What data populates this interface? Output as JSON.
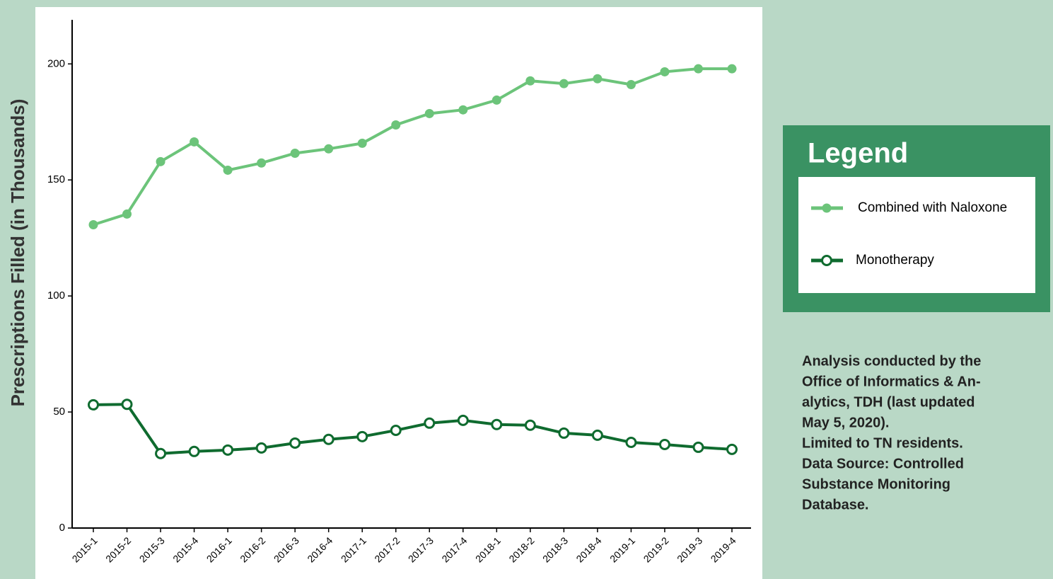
{
  "chart_data": {
    "type": "line",
    "y_label": "Prescriptions Filled (in Thousands)",
    "categories": [
      "2015-1",
      "2015-2",
      "2015-3",
      "2015-4",
      "2016-1",
      "2016-2",
      "2016-3",
      "2016-4",
      "2017-1",
      "2017-2",
      "2017-3",
      "2017-4",
      "2018-1",
      "2018-2",
      "2018-3",
      "2018-4",
      "2019-1",
      "2019-2",
      "2019-3",
      "2019-4"
    ],
    "series": [
      {
        "name": "Combined with Naloxone",
        "color": "#6cc47a",
        "marker": "filled",
        "values": [
          130.7,
          135.3,
          157.9,
          166.4,
          154.2,
          157.3,
          161.5,
          163.4,
          165.8,
          173.7,
          178.6,
          180.2,
          184.4,
          192.7,
          191.5,
          193.6,
          191.1,
          196.6,
          197.9,
          197.9
        ]
      },
      {
        "name": "Monotherapy",
        "color": "#0f6b2f",
        "marker": "open",
        "values": [
          53.1,
          53.3,
          32.1,
          33.0,
          33.6,
          34.5,
          36.6,
          38.2,
          39.4,
          42.1,
          45.2,
          46.4,
          44.6,
          44.3,
          40.9,
          40.0,
          36.9,
          36.0,
          34.8,
          33.9
        ]
      }
    ],
    "ylim": [
      0,
      219
    ],
    "yticks": [
      0,
      50,
      100,
      150,
      200
    ],
    "legend_title": "Legend",
    "note": [
      "Analysis conducted by the",
      "Office of Informatics & An-",
      "alytics, TDH (last updated",
      "May 5, 2020).",
      "Limited to TN residents.",
      "Data Source: Controlled",
      "Substance Monitoring",
      "Database."
    ]
  }
}
